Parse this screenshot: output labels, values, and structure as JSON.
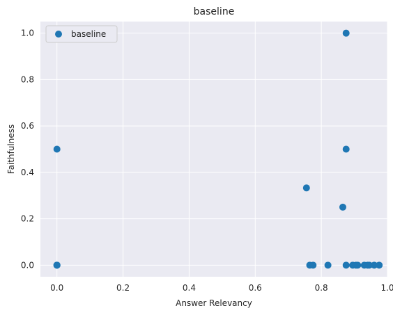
{
  "chart_data": {
    "type": "scatter",
    "title": "baseline",
    "xlabel": "Answer Relevancy",
    "ylabel": "Faithfulness",
    "xlim": [
      -0.05,
      1.0
    ],
    "ylim": [
      -0.05,
      1.05
    ],
    "xticks": [
      0.0,
      0.2,
      0.4,
      0.6,
      0.8,
      1.0
    ],
    "xtick_labels": [
      "0.0",
      "0.2",
      "0.4",
      "0.6",
      "0.8",
      "1.0"
    ],
    "yticks": [
      0.0,
      0.2,
      0.4,
      0.6,
      0.8,
      1.0
    ],
    "ytick_labels": [
      "0.0",
      "0.2",
      "0.4",
      "0.6",
      "0.8",
      "1.0"
    ],
    "grid": true,
    "legend_position": "top-left",
    "colors": {
      "background": "#eaeaf2",
      "grid": "#ffffff",
      "point": "#1f77b4"
    },
    "series": [
      {
        "name": "baseline",
        "points": [
          [
            0.0,
            0.0
          ],
          [
            0.0,
            0.0
          ],
          [
            0.0,
            0.0
          ],
          [
            0.0,
            0.5
          ],
          [
            0.755,
            0.333
          ],
          [
            0.765,
            0.0
          ],
          [
            0.775,
            0.0
          ],
          [
            0.82,
            0.0
          ],
          [
            0.865,
            0.25
          ],
          [
            0.875,
            1.0
          ],
          [
            0.875,
            0.5
          ],
          [
            0.875,
            0.0
          ],
          [
            0.895,
            0.0
          ],
          [
            0.905,
            0.0
          ],
          [
            0.91,
            0.0
          ],
          [
            0.93,
            0.0
          ],
          [
            0.94,
            0.0
          ],
          [
            0.945,
            0.0
          ],
          [
            0.96,
            0.0
          ],
          [
            0.975,
            0.0
          ]
        ]
      }
    ]
  }
}
